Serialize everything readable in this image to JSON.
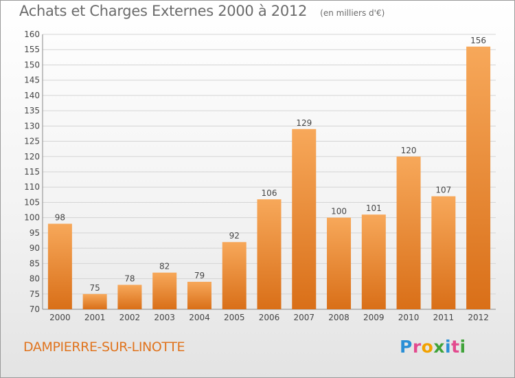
{
  "header": {
    "title": "Achats et Charges Externes 2000 à 2012",
    "subtitle": "(en milliers d'€)"
  },
  "footer": {
    "commune": "DAMPIERRE-SUR-LINOTTE",
    "logo_letters": [
      "P",
      "r",
      "o",
      "x",
      "i",
      "t",
      "i"
    ],
    "logo_colors": [
      "#2a8fd6",
      "#e34a8e",
      "#f2a100",
      "#40a33a",
      "#2a8fd6",
      "#e34a8e",
      "#40a33a"
    ]
  },
  "chart_data": {
    "type": "bar",
    "title": "Achats et Charges Externes 2000 à 2012",
    "subtitle": "(en milliers d'€)",
    "categories": [
      "2000",
      "2001",
      "2002",
      "2003",
      "2004",
      "2005",
      "2006",
      "2007",
      "2008",
      "2009",
      "2010",
      "2011",
      "2012"
    ],
    "values": [
      98,
      75,
      78,
      82,
      79,
      92,
      106,
      129,
      100,
      101,
      120,
      107,
      156
    ],
    "ylim": [
      70,
      160
    ],
    "yticks": [
      70,
      75,
      80,
      85,
      90,
      95,
      100,
      105,
      110,
      115,
      120,
      125,
      130,
      135,
      140,
      145,
      150,
      155,
      160
    ],
    "grid": true,
    "bar_color_top": "#f7a85a",
    "bar_color_bottom": "#d96f18"
  }
}
